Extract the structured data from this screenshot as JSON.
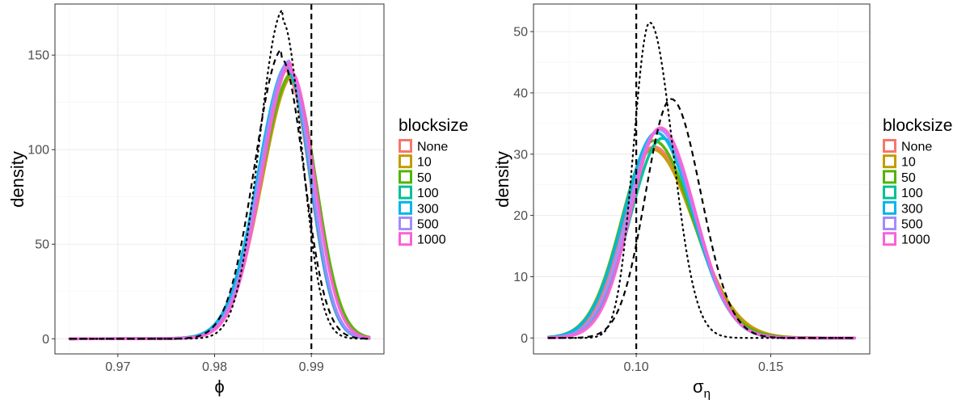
{
  "legend": {
    "title": "blocksize",
    "items": [
      {
        "label": "None",
        "color": "#F8766D"
      },
      {
        "label": "10",
        "color": "#C49A00"
      },
      {
        "label": "50",
        "color": "#53B400"
      },
      {
        "label": "100",
        "color": "#00C094"
      },
      {
        "label": "300",
        "color": "#00B6EB"
      },
      {
        "label": "500",
        "color": "#A58AFF"
      },
      {
        "label": "1000",
        "color": "#FB61D7"
      }
    ]
  },
  "chart_data": [
    {
      "type": "line",
      "xlabel": "ϕ",
      "ylabel": "density",
      "xlim": [
        0.9635,
        0.9975
      ],
      "ylim": [
        -8,
        177
      ],
      "xticks": [
        0.97,
        0.98,
        0.99
      ],
      "xtick_labels": [
        "0.97",
        "0.98",
        "0.99"
      ],
      "yticks": [
        0,
        50,
        100,
        150
      ],
      "ytick_labels": [
        "0",
        "50",
        "100",
        "150"
      ],
      "grid": true,
      "legend_position": "right",
      "vline": 0.99,
      "peak": 142,
      "series": [
        {
          "name": "None",
          "color": "#F8766D",
          "mu": 0.9876,
          "sl": 0.0031,
          "sr": 0.0023,
          "amp": 138,
          "tail": 0.0032
        },
        {
          "name": "10",
          "color": "#C49A00",
          "mu": 0.9881,
          "sl": 0.0032,
          "sr": 0.0024,
          "amp": 135,
          "tail": 0.0032
        },
        {
          "name": "50",
          "color": "#53B400",
          "mu": 0.988,
          "sl": 0.0032,
          "sr": 0.0025,
          "amp": 136,
          "tail": 0.0032
        },
        {
          "name": "100",
          "color": "#00C094",
          "mu": 0.9877,
          "sl": 0.0031,
          "sr": 0.0023,
          "amp": 140,
          "tail": 0.0032
        },
        {
          "name": "300",
          "color": "#00B6EB",
          "mu": 0.9876,
          "sl": 0.0031,
          "sr": 0.0023,
          "amp": 141,
          "tail": 0.0034
        },
        {
          "name": "500",
          "color": "#A58AFF",
          "mu": 0.9877,
          "sl": 0.003,
          "sr": 0.0023,
          "amp": 142,
          "tail": 0.0032
        },
        {
          "name": "1000",
          "color": "#FB61D7",
          "mu": 0.9879,
          "sl": 0.003,
          "sr": 0.0024,
          "amp": 141,
          "tail": 0.0032
        },
        {
          "style": "dotted",
          "color": "#000000",
          "mu": 0.987,
          "sl": 0.0024,
          "sr": 0.002,
          "amp": 168,
          "tail": 0.0017
        },
        {
          "style": "dashed",
          "color": "#000000",
          "mu": 0.9869,
          "sl": 0.0028,
          "sr": 0.0023,
          "amp": 148,
          "tail": 0.0015
        }
      ]
    },
    {
      "type": "line",
      "xlabel": "σ",
      "xlabel_sub": "η",
      "ylabel": "density",
      "xlim": [
        0.0618,
        0.1868
      ],
      "ylim": [
        -2.6,
        54.5
      ],
      "xticks": [
        0.1,
        0.15
      ],
      "xtick_labels": [
        "0.10",
        "0.15"
      ],
      "yticks": [
        0,
        10,
        20,
        30,
        40,
        50
      ],
      "ytick_labels": [
        "0",
        "10",
        "20",
        "30",
        "40",
        "50"
      ],
      "grid": true,
      "legend_position": "right",
      "vline": 0.1,
      "series": [
        {
          "name": "None",
          "color": "#F8766D",
          "mu": 0.1065,
          "sl": 0.0112,
          "sr": 0.015,
          "amp": 31.2
        },
        {
          "name": "10",
          "color": "#C49A00",
          "mu": 0.106,
          "sl": 0.0115,
          "sr": 0.0155,
          "amp": 30.8
        },
        {
          "name": "50",
          "color": "#53B400",
          "mu": 0.1065,
          "sl": 0.0118,
          "sr": 0.0145,
          "amp": 32.2
        },
        {
          "name": "100",
          "color": "#00C094",
          "mu": 0.1098,
          "sl": 0.012,
          "sr": 0.0125,
          "amp": 32.6
        },
        {
          "name": "300",
          "color": "#00B6EB",
          "mu": 0.1075,
          "sl": 0.012,
          "sr": 0.0135,
          "amp": 33.5
        },
        {
          "name": "500",
          "color": "#A58AFF",
          "mu": 0.1085,
          "sl": 0.0115,
          "sr": 0.013,
          "amp": 34.0
        },
        {
          "name": "1000",
          "color": "#FB61D7",
          "mu": 0.109,
          "sl": 0.011,
          "sr": 0.0128,
          "amp": 34.3
        },
        {
          "style": "dotted",
          "color": "#000000",
          "mu": 0.105,
          "sl": 0.006,
          "sr": 0.0085,
          "amp": 51.5
        },
        {
          "style": "dashed",
          "color": "#000000",
          "mu": 0.113,
          "sl": 0.0095,
          "sr": 0.011,
          "amp": 39.0
        }
      ]
    }
  ]
}
